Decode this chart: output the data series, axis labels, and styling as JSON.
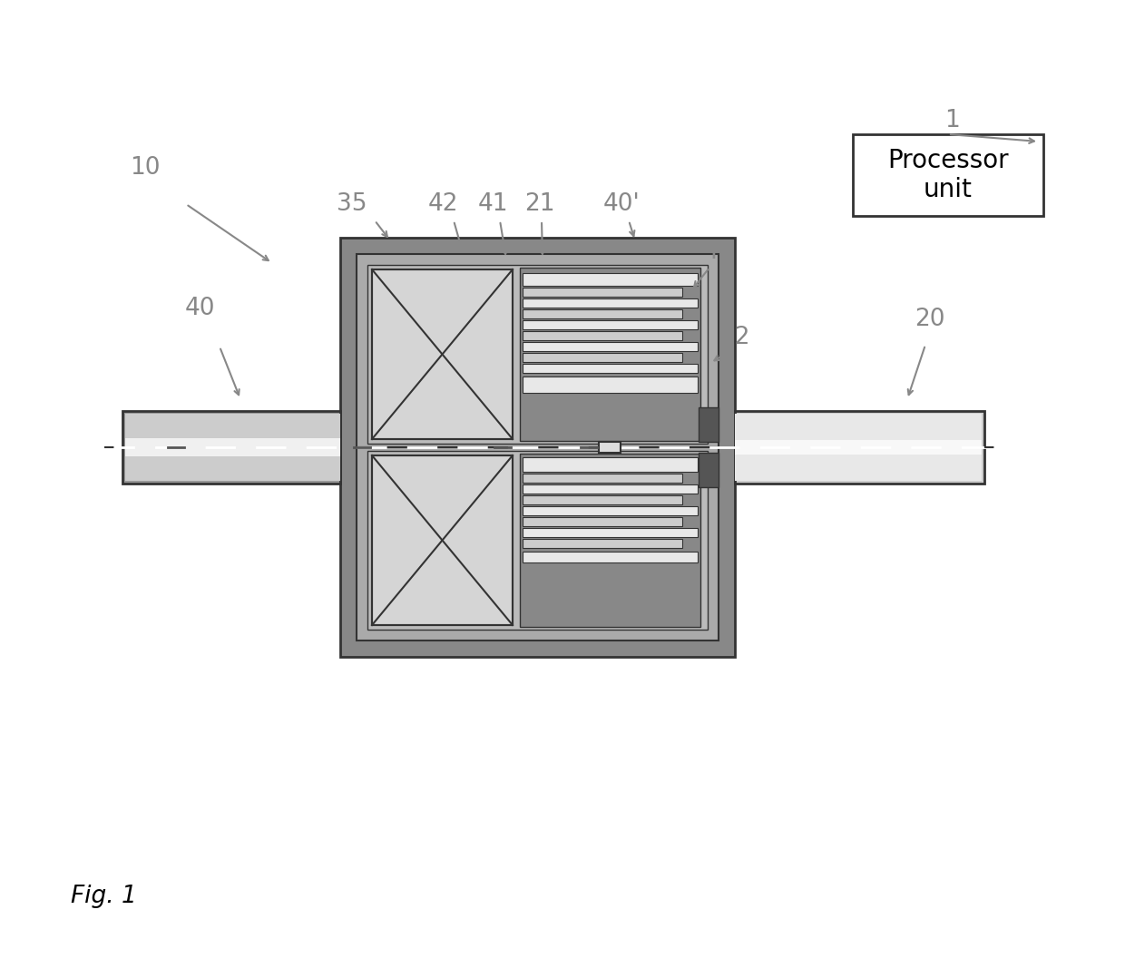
{
  "bg_color": "#ffffff",
  "outer_housing_color": "#888888",
  "inner_housing_color": "#aaaaaa",
  "inner2_color": "#bbbbbb",
  "x_fill_color": "#cccccc",
  "x_bg_color": "#d5d5d5",
  "plate_bg_color": "#888888",
  "plate_long_color": "#e8e8e8",
  "plate_short_color": "#cccccc",
  "dark_block_color": "#555555",
  "pipe_color": "#dddddd",
  "left_shaft_outer": "#999999",
  "left_shaft_inner": "#cccccc",
  "left_shaft_highlight": "#f0f0f0",
  "right_shaft_outer": "#cccccc",
  "right_shaft_inner": "#e8e8e8",
  "right_shaft_highlight": "#f8f8f8",
  "border_color": "#333333",
  "label_color": "#888888",
  "fig_label": "Fig. 1",
  "processor_label": "Processor\nunit",
  "lfs": 19
}
